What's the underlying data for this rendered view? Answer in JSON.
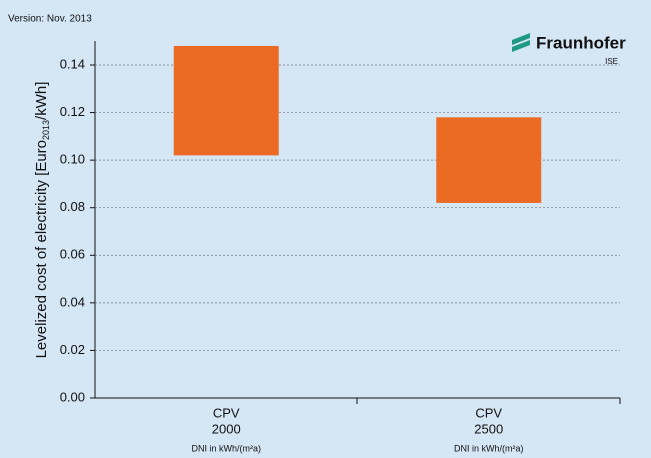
{
  "chart_data": {
    "type": "floating-bar",
    "version": "Version: Nov. 2013",
    "logo": "Fraunhofer",
    "logo_sub": "ISE",
    "y_label": [
      "Levelized cost of electricity [Euro",
      "2013",
      "/kWh]"
    ],
    "categories": [
      "CPV",
      "CPV"
    ],
    "sublabels": [
      "2000",
      "2500"
    ],
    "notes": [
      "DNI in kWh/(m²a)",
      "DNI in kWh/(m²a)"
    ],
    "low": [
      0.102,
      0.082
    ],
    "high": [
      0.148,
      0.118
    ],
    "color": "#eb6b24",
    "ylim": [
      0,
      0.15
    ],
    "yticks": [
      {
        "value": 0,
        "label": "0.00"
      },
      {
        "value": 0.02,
        "label": "0.02"
      },
      {
        "value": 0.04,
        "label": "0.04"
      },
      {
        "value": 0.06,
        "label": "0.06"
      },
      {
        "value": 0.08,
        "label": "0.08"
      },
      {
        "value": 0.1,
        "label": "0.10"
      },
      {
        "value": 0.12,
        "label": "0.12"
      },
      {
        "value": 0.14,
        "label": "0.14"
      }
    ],
    "grid": true
  }
}
